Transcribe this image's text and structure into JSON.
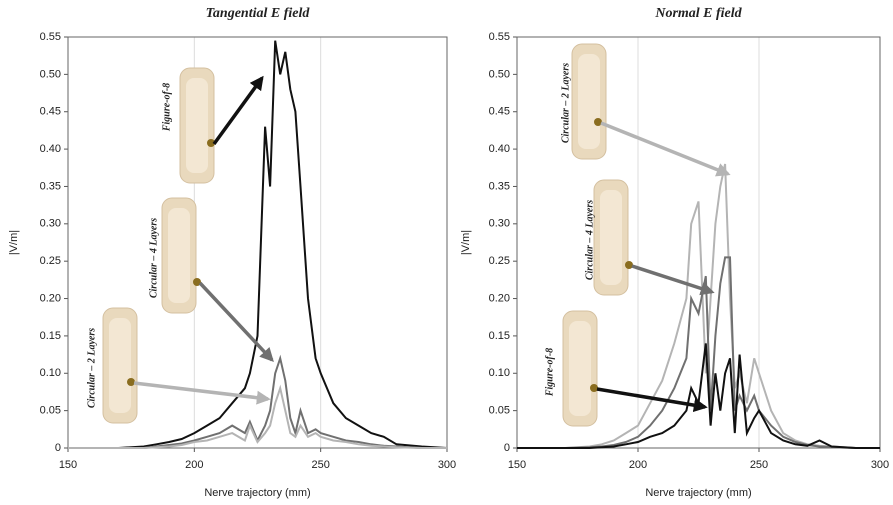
{
  "chart_data": [
    {
      "type": "line",
      "title": "Tangential E field",
      "x_label": "Nerve trajectory (mm)",
      "y_label": "|V/m|",
      "x": [
        150,
        160,
        170,
        180,
        185,
        190,
        195,
        200,
        205,
        210,
        215,
        220,
        222,
        225,
        228,
        230,
        232,
        234,
        236,
        238,
        240,
        242,
        245,
        248,
        250,
        255,
        260,
        265,
        270,
        275,
        280,
        290,
        300
      ],
      "series": [
        {
          "name": "Figure-of-8",
          "color": "#111111",
          "values": [
            0,
            0,
            0,
            0.002,
            0.005,
            0.008,
            0.012,
            0.02,
            0.03,
            0.04,
            0.06,
            0.08,
            0.1,
            0.15,
            0.43,
            0.35,
            0.545,
            0.5,
            0.53,
            0.48,
            0.45,
            0.35,
            0.2,
            0.12,
            0.1,
            0.06,
            0.04,
            0.03,
            0.02,
            0.015,
            0.005,
            0.002,
            0
          ]
        },
        {
          "name": "Circular – 4 Layers",
          "color": "#707070",
          "values": [
            0,
            0,
            0,
            0,
            0.002,
            0.004,
            0.006,
            0.01,
            0.015,
            0.02,
            0.03,
            0.02,
            0.035,
            0.01,
            0.03,
            0.05,
            0.1,
            0.12,
            0.09,
            0.04,
            0.02,
            0.05,
            0.02,
            0.025,
            0.02,
            0.015,
            0.01,
            0.008,
            0.005,
            0.003,
            0.002,
            0,
            0
          ]
        },
        {
          "name": "Circular – 2 Layers",
          "color": "#b4b4b4",
          "values": [
            0,
            0,
            0,
            0,
            0.001,
            0.002,
            0.004,
            0.008,
            0.01,
            0.015,
            0.02,
            0.01,
            0.03,
            0.008,
            0.02,
            0.03,
            0.06,
            0.08,
            0.05,
            0.02,
            0.015,
            0.03,
            0.015,
            0.02,
            0.015,
            0.01,
            0.008,
            0.005,
            0.003,
            0.002,
            0.001,
            0,
            0
          ]
        }
      ],
      "xlim": [
        150,
        300
      ],
      "ylim": [
        0,
        0.55
      ],
      "xticks": [
        150,
        200,
        250,
        300
      ],
      "yticks": [
        0,
        0.05,
        {
          "value": 0.1,
          "label": "0.10"
        },
        0.15,
        {
          "value": 0.2,
          "label": "0.20"
        },
        0.25,
        {
          "value": 0.3,
          "label": "0.30"
        },
        0.35,
        {
          "value": 0.4,
          "label": "0.40"
        },
        0.45,
        {
          "value": 0.5,
          "label": "0.50"
        },
        0.55
      ],
      "grid": true
    },
    {
      "type": "line",
      "title": "Normal E field",
      "x_label": "Nerve trajectory (mm)",
      "y_label": "|V/m|",
      "x": [
        150,
        160,
        170,
        180,
        185,
        190,
        195,
        200,
        205,
        210,
        215,
        220,
        222,
        225,
        228,
        230,
        232,
        234,
        236,
        238,
        240,
        242,
        245,
        248,
        250,
        255,
        260,
        265,
        270,
        275,
        280,
        290,
        300
      ],
      "series": [
        {
          "name": "Circular – 2 Layers",
          "color": "#b4b4b4",
          "values": [
            0,
            0,
            0,
            0.002,
            0.005,
            0.01,
            0.02,
            0.03,
            0.06,
            0.09,
            0.14,
            0.2,
            0.3,
            0.33,
            0.1,
            0.2,
            0.3,
            0.35,
            0.38,
            0.2,
            0.08,
            0.1,
            0.06,
            0.12,
            0.1,
            0.05,
            0.02,
            0.01,
            0.005,
            0.003,
            0.002,
            0,
            0
          ]
        },
        {
          "name": "Circular – 4 Layers",
          "color": "#707070",
          "values": [
            0,
            0,
            0,
            0.001,
            0.002,
            0.004,
            0.008,
            0.015,
            0.03,
            0.05,
            0.08,
            0.12,
            0.2,
            0.18,
            0.23,
            0.05,
            0.15,
            0.22,
            0.255,
            0.255,
            0.05,
            0.07,
            0.05,
            0.07,
            0.05,
            0.03,
            0.015,
            0.008,
            0.004,
            0.002,
            0.001,
            0,
            0
          ]
        },
        {
          "name": "Figure-of-8",
          "color": "#111111",
          "values": [
            0,
            0,
            0,
            0,
            0.001,
            0.002,
            0.005,
            0.008,
            0.015,
            0.02,
            0.03,
            0.05,
            0.08,
            0.06,
            0.14,
            0.03,
            0.1,
            0.05,
            0.1,
            0.12,
            0.02,
            0.125,
            0.02,
            0.04,
            0.05,
            0.02,
            0.01,
            0.005,
            0.003,
            0.01,
            0.002,
            0,
            0
          ]
        }
      ],
      "xlim": [
        150,
        300
      ],
      "ylim": [
        0,
        0.55
      ],
      "xticks": [
        150,
        200,
        250,
        300
      ],
      "yticks": [
        0,
        0.05,
        {
          "value": 0.1,
          "label": "0.10"
        },
        0.15,
        {
          "value": 0.2,
          "label": "0.20"
        },
        0.25,
        {
          "value": 0.3,
          "label": "0.30"
        },
        0.35,
        {
          "value": 0.4,
          "label": "0.40"
        },
        0.45,
        {
          "value": 0.5,
          "label": "0.50"
        },
        0.55
      ],
      "grid": true
    }
  ]
}
